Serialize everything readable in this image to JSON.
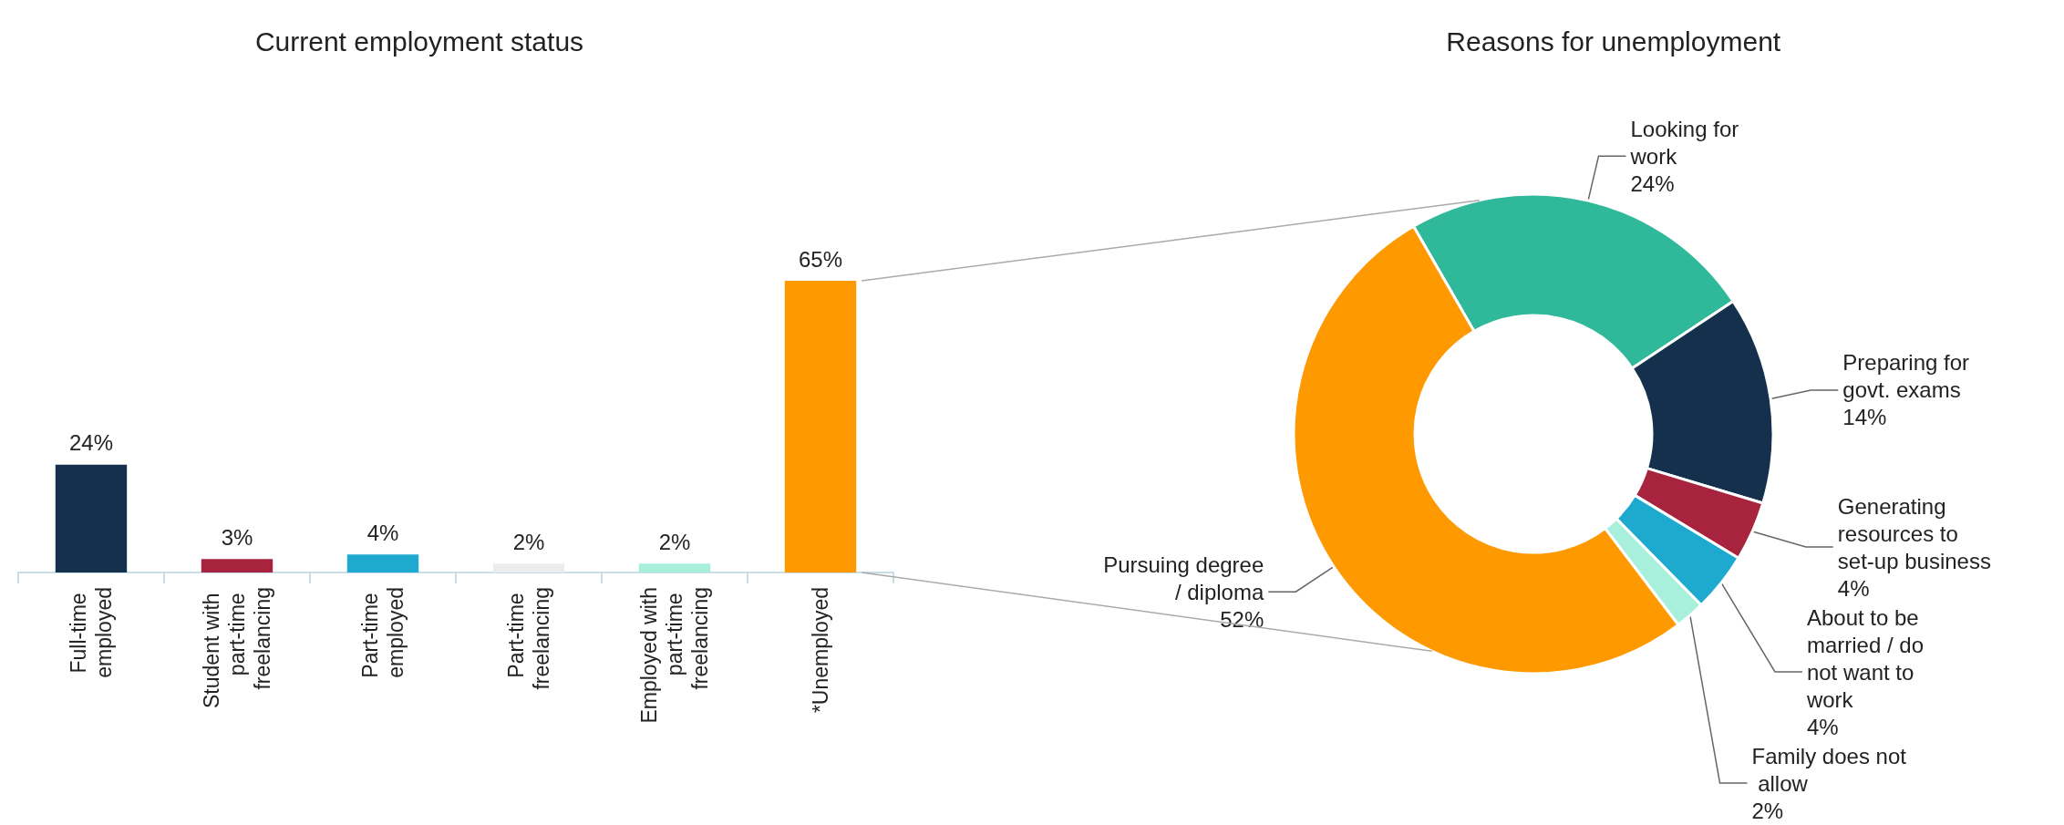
{
  "chart_data": [
    {
      "type": "bar",
      "title": "Current employment status",
      "categories": [
        "Full-time employed",
        "Student with part-time freelancing",
        "Part-time employed",
        "Part-time freelancing",
        "Employed with part-time freelancing",
        "*Unemployed"
      ],
      "values": [
        24,
        3,
        4,
        2,
        2,
        65
      ],
      "colors": [
        "#14304d",
        "#a8243e",
        "#1ea9cf",
        "#ececec",
        "#a8f0dc",
        "#ff9900"
      ],
      "value_labels": [
        "24%",
        "3%",
        "4%",
        "2%",
        "2%",
        "65%"
      ]
    },
    {
      "type": "donut",
      "title": "Reasons for unemployment",
      "categories": [
        "Looking for work",
        "Preparing for govt. exams",
        "Generating resources to set-up business",
        "About to be married / do not want to work",
        "Family does not allow",
        "Pursuing degree / diploma"
      ],
      "values": [
        24,
        14,
        4,
        4,
        2,
        52
      ],
      "colors": [
        "#2fb89a",
        "#14304d",
        "#a8243e",
        "#1ea9cf",
        "#a8f0dc",
        "#ff9900"
      ],
      "value_labels": [
        "24%",
        "14%",
        "4%",
        "4%",
        "2%",
        "52%"
      ]
    }
  ]
}
